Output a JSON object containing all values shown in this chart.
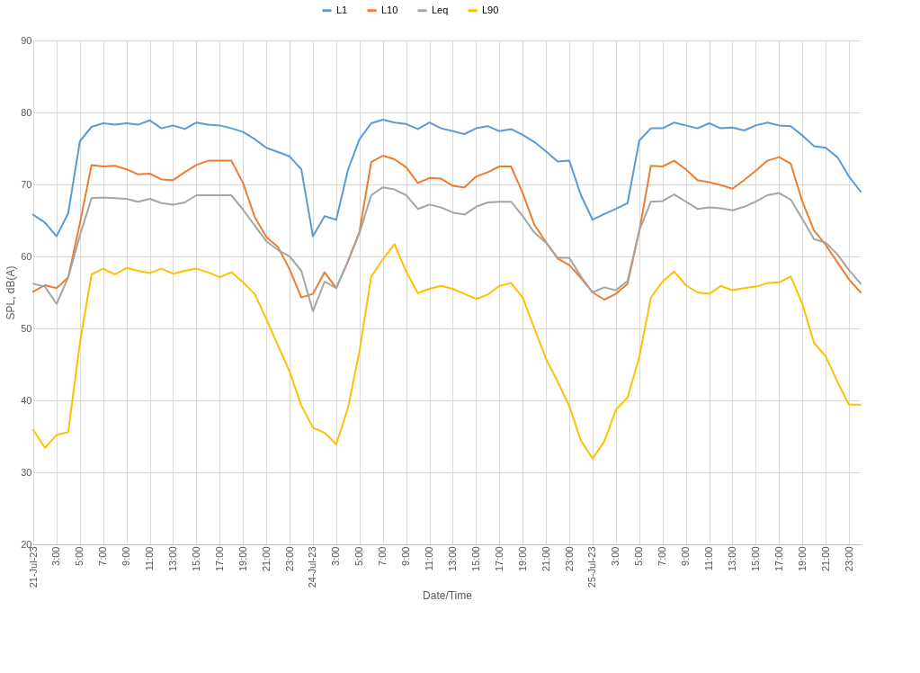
{
  "chart_data": {
    "type": "line",
    "categories": [
      "21-Jul-23",
      null,
      "3:00",
      null,
      "5:00",
      null,
      "7:00",
      null,
      "9:00",
      null,
      "11:00",
      null,
      "13:00",
      null,
      "15:00",
      null,
      "17:00",
      null,
      "19:00",
      null,
      "21:00",
      null,
      "23:00",
      null,
      "24-Jul-23",
      null,
      "3:00",
      null,
      "5:00",
      null,
      "7:00",
      null,
      "9:00",
      null,
      "11:00",
      null,
      "13:00",
      null,
      "15:00",
      null,
      "17:00",
      null,
      "19:00",
      null,
      "21:00",
      null,
      "23:00",
      null,
      "25-Jul-23",
      null,
      "3:00",
      null,
      "5:00",
      null,
      "7:00",
      null,
      "9:00",
      null,
      "11:00",
      null,
      "13:00",
      null,
      "15:00",
      null,
      "17:00",
      null,
      "19:00",
      null,
      "21:00",
      null,
      "23:00",
      null
    ],
    "series": [
      {
        "name": "L1",
        "color": "#5b9bd5",
        "values": [
          65.8,
          64.7,
          62.8,
          66.0,
          76.0,
          78.0,
          78.5,
          78.3,
          78.5,
          78.3,
          78.9,
          77.8,
          78.2,
          77.7,
          78.6,
          78.3,
          78.2,
          77.8,
          77.3,
          76.3,
          75.1,
          74.5,
          73.9,
          72.1,
          62.8,
          65.6,
          65.1,
          72.0,
          76.3,
          78.5,
          79.0,
          78.6,
          78.4,
          77.7,
          78.6,
          77.8,
          77.4,
          77.0,
          77.8,
          78.1,
          77.4,
          77.7,
          76.9,
          75.9,
          74.6,
          73.2,
          73.3,
          68.5,
          65.1,
          65.9,
          66.6,
          67.4,
          76.1,
          77.8,
          77.8,
          78.6,
          78.2,
          77.8,
          78.5,
          77.8,
          77.9,
          77.5,
          78.2,
          78.6,
          78.2,
          78.1,
          76.8,
          75.3,
          75.1,
          73.8,
          71.1,
          69.0
        ]
      },
      {
        "name": "L10",
        "color": "#ed7d31",
        "values": [
          55.1,
          56.0,
          55.6,
          57.1,
          64.6,
          72.7,
          72.5,
          72.6,
          72.1,
          71.4,
          71.5,
          70.7,
          70.6,
          71.7,
          72.7,
          73.3,
          73.3,
          73.3,
          70.2,
          65.5,
          62.7,
          61.3,
          58.2,
          54.3,
          54.8,
          57.8,
          55.6,
          59.3,
          63.5,
          73.1,
          74.0,
          73.5,
          72.4,
          70.2,
          70.9,
          70.8,
          69.8,
          69.6,
          71.1,
          71.7,
          72.5,
          72.5,
          68.8,
          64.4,
          62.0,
          59.7,
          58.8,
          57.0,
          55.0,
          54.0,
          54.8,
          56.2,
          63.5,
          72.6,
          72.5,
          73.3,
          72.1,
          70.6,
          70.3,
          69.9,
          69.4,
          70.6,
          71.9,
          73.3,
          73.8,
          72.9,
          67.6,
          63.6,
          61.6,
          59.2,
          56.8,
          55.0
        ]
      },
      {
        "name": "Leq",
        "color": "#a5a5a5",
        "values": [
          56.2,
          55.8,
          53.4,
          57.1,
          62.9,
          68.1,
          68.2,
          68.1,
          68.0,
          67.6,
          68.0,
          67.4,
          67.2,
          67.5,
          68.5,
          68.5,
          68.5,
          68.5,
          66.5,
          64.3,
          62.1,
          60.9,
          60.0,
          58.0,
          52.4,
          56.5,
          55.6,
          59.3,
          63.3,
          68.5,
          69.6,
          69.3,
          68.5,
          66.6,
          67.2,
          66.8,
          66.1,
          65.8,
          66.9,
          67.5,
          67.6,
          67.6,
          65.6,
          63.3,
          61.9,
          59.8,
          59.8,
          57.2,
          55.0,
          55.7,
          55.3,
          56.6,
          63.6,
          67.6,
          67.7,
          68.6,
          67.6,
          66.6,
          66.8,
          66.7,
          66.4,
          66.9,
          67.6,
          68.5,
          68.8,
          67.9,
          65.2,
          62.4,
          61.9,
          60.3,
          58.1,
          56.2
        ]
      },
      {
        "name": "L90",
        "color": "#ffc000",
        "values": [
          35.9,
          33.4,
          35.2,
          35.6,
          48.0,
          57.5,
          58.3,
          57.5,
          58.4,
          58.0,
          57.7,
          58.3,
          57.6,
          58.0,
          58.3,
          57.8,
          57.1,
          57.8,
          56.4,
          54.8,
          51.3,
          47.6,
          44.0,
          39.3,
          36.2,
          35.5,
          33.9,
          38.9,
          46.9,
          57.2,
          59.6,
          61.7,
          57.9,
          54.9,
          55.5,
          55.9,
          55.5,
          54.8,
          54.1,
          54.7,
          55.9,
          56.3,
          54.3,
          50.0,
          45.8,
          42.6,
          39.2,
          34.4,
          31.9,
          34.3,
          38.7,
          40.4,
          46.0,
          54.3,
          56.5,
          57.9,
          56.0,
          55.0,
          54.8,
          55.9,
          55.3,
          55.6,
          55.8,
          56.3,
          56.4,
          57.2,
          53.4,
          48.0,
          46.1,
          42.6,
          39.4,
          39.4
        ]
      }
    ],
    "xlabel": "Date/Time",
    "ylabel": "SPL, dB(A)",
    "ylim": [
      20,
      90
    ],
    "yticks": [
      20,
      30,
      40,
      50,
      60,
      70,
      80,
      90
    ],
    "grid": true,
    "legend": "top",
    "marker": "none",
    "line_style": "solid"
  }
}
